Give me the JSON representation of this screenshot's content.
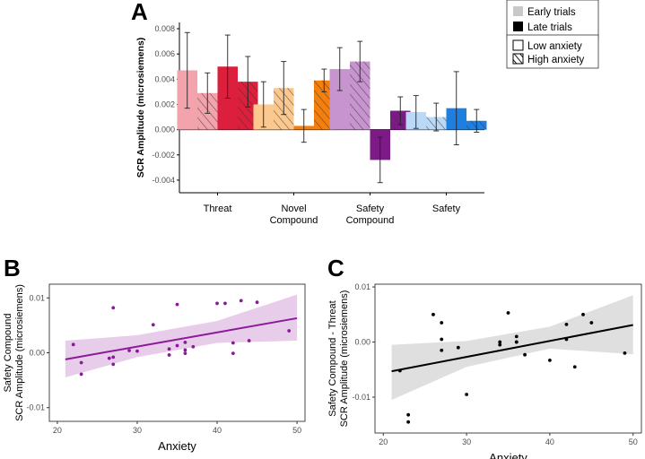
{
  "panels": {
    "a": "A",
    "b": "B",
    "c": "C"
  },
  "legend": {
    "items": [
      "Early trials",
      "Late trials",
      "Low anxiety",
      "High anxiety"
    ]
  },
  "chart_data": [
    {
      "id": "A",
      "type": "bar",
      "ylabel": "SCR Amplitude (microsiemens)",
      "ylim": [
        -0.005,
        0.0085
      ],
      "yticks": [
        -0.004,
        -0.002,
        0.0,
        0.002,
        0.004,
        0.006,
        0.008
      ],
      "ytick_labels": [
        "-0.004",
        "-0.002",
        "0.000",
        "0.002",
        "0.004",
        "0.006",
        "0.008"
      ],
      "categories": [
        "Threat",
        "Novel\nCompound",
        "Safety\nCompound",
        "Safety"
      ],
      "category_labels": [
        [
          "Threat"
        ],
        [
          "Novel",
          "Compound"
        ],
        [
          "Safety",
          "Compound"
        ],
        [
          "Safety"
        ]
      ],
      "series": [
        {
          "name": "Early trials / Low anxiety",
          "values": [
            0.0047,
            0.002,
            0.0048,
            0.0014
          ],
          "err": [
            0.003,
            0.0018,
            0.0017,
            0.0013
          ]
        },
        {
          "name": "Early trials / High anxiety",
          "values": [
            0.0029,
            0.0033,
            0.0054,
            0.001
          ],
          "err": [
            0.0016,
            0.0021,
            0.0016,
            0.0011
          ]
        },
        {
          "name": "Late trials / Low anxiety",
          "values": [
            0.005,
            0.0003,
            -0.0024,
            0.0017
          ],
          "err": [
            0.0025,
            0.0013,
            0.0018,
            0.0029
          ]
        },
        {
          "name": "Late trials / High anxiety",
          "values": [
            0.0038,
            0.0039,
            0.0015,
            0.0007
          ],
          "err": [
            0.002,
            0.0009,
            0.0011,
            0.0009
          ]
        }
      ],
      "colors": [
        [
          "#f2a3ab",
          "#f2a3ab",
          "#dc1f3c",
          "#dc1f3c"
        ],
        [
          "#fbc98f",
          "#fbc98f",
          "#f57f0e",
          "#f57f0e"
        ],
        [
          "#c794cf",
          "#c794cf",
          "#7e1a87",
          "#7e1a87"
        ],
        [
          "#b9d9f7",
          "#b9d9f7",
          "#1f7fe0",
          "#1f7fe0"
        ]
      ]
    },
    {
      "id": "B",
      "type": "scatter",
      "xlabel": "Anxiety",
      "ylabel": "Safety Compound\nSCR Amplitude (microsiemens)",
      "ylabel_lines": [
        "Safety Compound",
        "SCR Amplitude (microsiemens)"
      ],
      "xlim": [
        19,
        51
      ],
      "ylim": [
        -0.0125,
        0.0125
      ],
      "xticks": [
        20,
        30,
        40,
        50
      ],
      "yticks": [
        -0.01,
        0.0,
        0.01
      ],
      "ytick_labels": [
        "-0.01",
        "0.00",
        "0.01"
      ],
      "color": "#8b1a99",
      "band_color": "#e4c4e8",
      "points": [
        [
          22,
          0.0015
        ],
        [
          23,
          -0.0018
        ],
        [
          23,
          -0.0039
        ],
        [
          26.5,
          -0.001
        ],
        [
          27,
          0.0082
        ],
        [
          27,
          -0.0008
        ],
        [
          27,
          -0.0021
        ],
        [
          29,
          0.0004
        ],
        [
          30,
          0.0003
        ],
        [
          32,
          0.0051
        ],
        [
          34,
          0.0007
        ],
        [
          34,
          -0.0004
        ],
        [
          35,
          0.0088
        ],
        [
          35,
          0.0013
        ],
        [
          36,
          0.0019
        ],
        [
          36,
          0.0005
        ],
        [
          36,
          -0.0001
        ],
        [
          37,
          0.0011
        ],
        [
          40,
          0.009
        ],
        [
          41,
          0.009
        ],
        [
          42,
          0.0018
        ],
        [
          42,
          -0.0001
        ],
        [
          43,
          0.0095
        ],
        [
          44,
          0.0022
        ],
        [
          45,
          0.0092
        ],
        [
          49,
          0.004
        ]
      ],
      "fit": {
        "x": [
          21,
          50
        ],
        "y": [
          -0.0012,
          0.0063
        ]
      },
      "band": {
        "x": [
          21,
          30,
          40,
          50
        ],
        "lower": [
          -0.0045,
          -0.0008,
          0.0018,
          0.0022
        ],
        "upper": [
          0.0022,
          0.0032,
          0.0058,
          0.0106
        ]
      }
    },
    {
      "id": "C",
      "type": "scatter",
      "xlabel": "Anxiety",
      "ylabel": "Safety Compound - Threat\nSCR Amplitude (microsiemens)",
      "ylabel_lines": [
        "Safety Compound - Threat",
        "SCR Amplitude (microsiemens)"
      ],
      "xlim": [
        19,
        51
      ],
      "ylim": [
        -0.0165,
        0.0105
      ],
      "xticks": [
        20,
        30,
        40,
        50
      ],
      "yticks": [
        -0.01,
        0.0,
        0.01
      ],
      "ytick_labels": [
        "-0.01",
        "0.00",
        "0.01"
      ],
      "color": "#000000",
      "band_color": "#d9d9d9",
      "points": [
        [
          22,
          -0.0052
        ],
        [
          23,
          -0.0132
        ],
        [
          23,
          -0.0145
        ],
        [
          26,
          0.005
        ],
        [
          27,
          0.0035
        ],
        [
          27,
          0.0005
        ],
        [
          27,
          -0.0015
        ],
        [
          29,
          -0.001
        ],
        [
          30,
          -0.0095
        ],
        [
          34,
          -0.0005
        ],
        [
          34,
          0.0
        ],
        [
          35,
          0.0053
        ],
        [
          36,
          0.001
        ],
        [
          36,
          0.0
        ],
        [
          36,
          0.0
        ],
        [
          37,
          -0.0023
        ],
        [
          40,
          -0.0033
        ],
        [
          42,
          0.0032
        ],
        [
          42,
          0.0005
        ],
        [
          43,
          -0.0045
        ],
        [
          44,
          0.005
        ],
        [
          45,
          0.0035
        ],
        [
          49,
          -0.002
        ]
      ],
      "fit": {
        "x": [
          21,
          50
        ],
        "y": [
          -0.0053,
          0.0031
        ]
      },
      "band": {
        "x": [
          21,
          30,
          40,
          50
        ],
        "lower": [
          -0.0105,
          -0.0045,
          -0.0012,
          -0.0022
        ],
        "upper": [
          -0.0005,
          0.0002,
          0.0028,
          0.0085
        ]
      }
    }
  ]
}
